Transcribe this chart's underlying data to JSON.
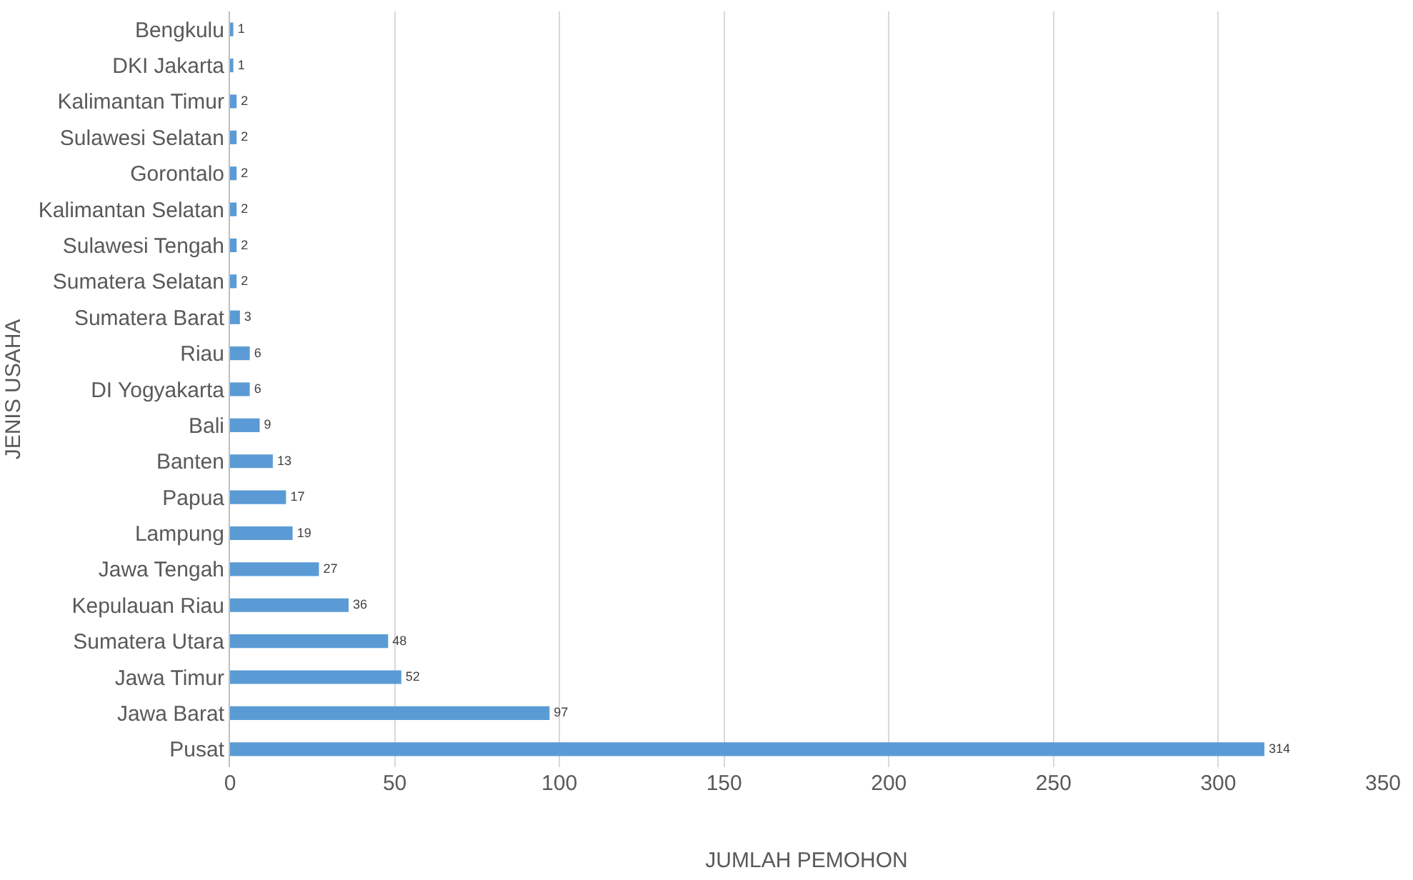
{
  "chart_data": {
    "type": "bar",
    "orientation": "horizontal",
    "xlabel": "JUMLAH PEMOHON",
    "ylabel": "JENIS USAHA",
    "categories": [
      "Bengkulu",
      "DKI Jakarta",
      "Kalimantan Timur",
      "Sulawesi Selatan",
      "Gorontalo",
      "Kalimantan Selatan",
      "Sulawesi Tengah",
      "Sumatera Selatan",
      "Sumatera Barat",
      "Riau",
      "DI Yogyakarta",
      "Bali",
      "Banten",
      "Papua",
      "Lampung",
      "Jawa Tengah",
      "Kepulauan Riau",
      "Sumatera Utara",
      "Jawa Timur",
      "Jawa Barat",
      "Pusat"
    ],
    "values": [
      1,
      1,
      2,
      2,
      2,
      2,
      2,
      2,
      3,
      6,
      6,
      9,
      13,
      17,
      19,
      27,
      36,
      48,
      52,
      97,
      314
    ],
    "color": "#5b9bd5",
    "data_labels": true,
    "grid": "x",
    "xlim": [
      0,
      350
    ],
    "xticks": [
      0,
      50,
      100,
      150,
      200,
      250,
      300,
      350
    ]
  }
}
